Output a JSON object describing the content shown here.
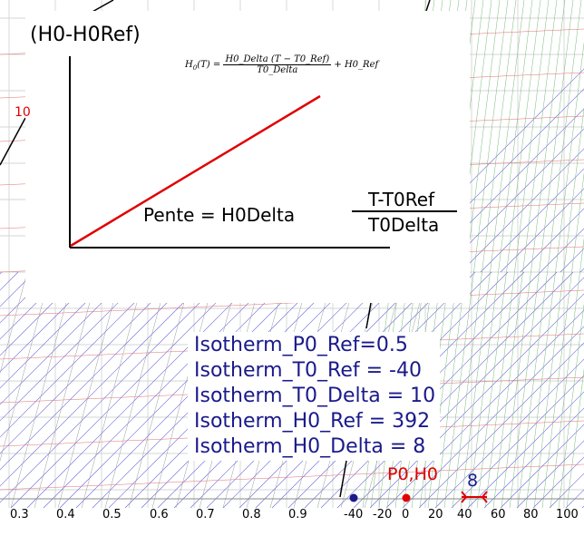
{
  "plot": {
    "y_label": "(H0-H0Ref)",
    "formula": {
      "lhs": "H",
      "lhs_sub": "0",
      "lhs_arg": "(T)",
      "numerator": "H0_Delta (T − T0_Ref)",
      "denominator": "T0_Delta",
      "tail": "+ H0_Ref"
    },
    "slope_label": "Pente = H0Delta",
    "x_label_num": "T-T0Ref",
    "x_label_den": "T0Delta"
  },
  "params": [
    "Isotherm_P0_Ref=0.5",
    "Isotherm_T0_Ref = -40",
    "Isotherm_T0_Delta = 10",
    "Isotherm_H0_Ref = 392",
    "Isotherm_H0_Delta = 8"
  ],
  "point_label": "P0,H0",
  "delta_label": "8",
  "side_label": "10",
  "axis_ticks": {
    "quality": [
      "0.3",
      "0.4",
      "0.5",
      "0.6",
      "0.7",
      "0.8",
      "0.9"
    ],
    "temperature": [
      "-40",
      "-20",
      "0",
      "20",
      "40",
      "60",
      "80",
      "100"
    ]
  },
  "colors": {
    "param_text": "#1a1a8c",
    "red_line": "#e00000",
    "grid_blue": "#6666dd",
    "grid_green": "#77bb77",
    "grid_red": "#e07070"
  }
}
